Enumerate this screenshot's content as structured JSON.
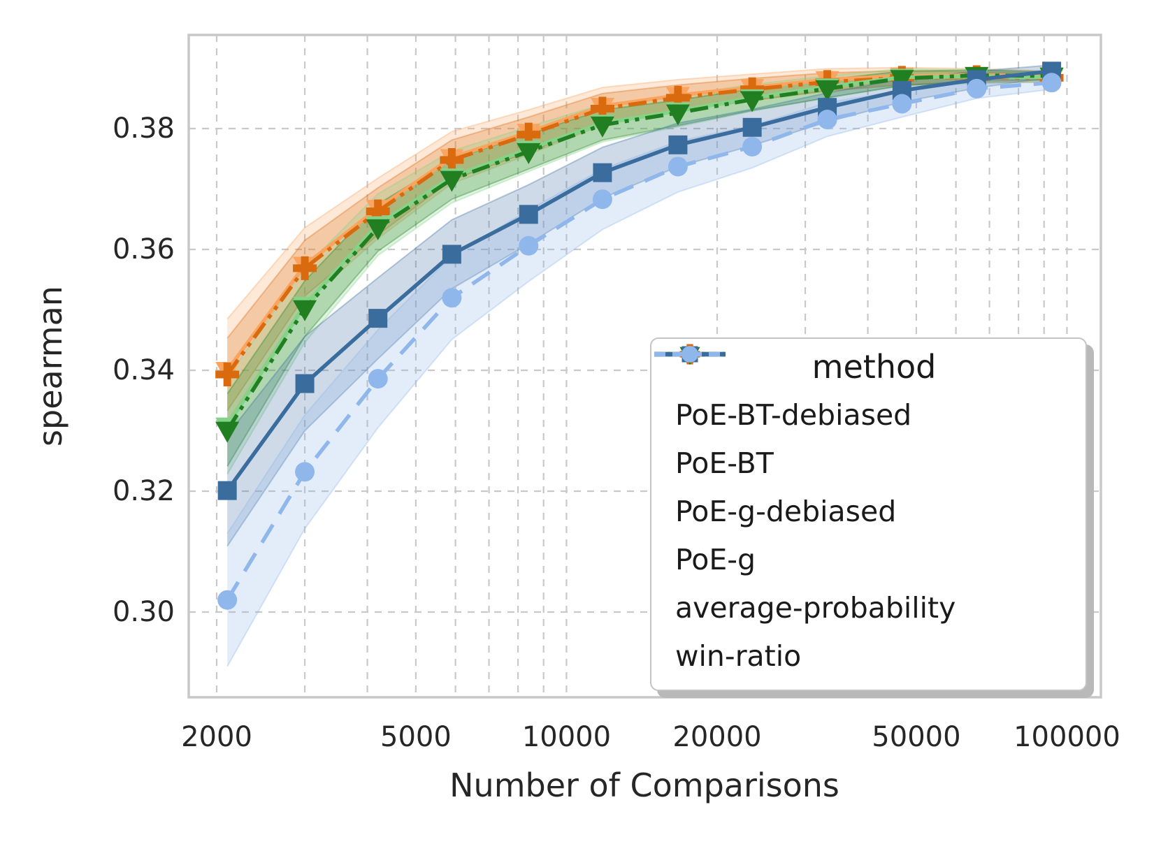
{
  "figure": {
    "background": "#ffffff",
    "text_color": "#262626",
    "grid_color": "#c9c9c9",
    "frame_color": "#c8c8c8",
    "legend_border_color": "#c4c4c4",
    "legend_shadow_color": "#b9b9b9"
  },
  "chart_data": {
    "type": "line",
    "title": "",
    "xlabel": "Number of Comparisons",
    "ylabel": "spearman",
    "x_scale": "log",
    "grid": true,
    "legend_title": "method",
    "legend_position": "lower right",
    "xlim": [
      1760,
      116000
    ],
    "ylim": [
      0.2859,
      0.3955
    ],
    "x_ticks": [
      {
        "value": 2000,
        "label": "2000"
      },
      {
        "value": 5000,
        "label": "5000"
      },
      {
        "value": 10000,
        "label": "10000"
      },
      {
        "value": 20000,
        "label": "20000"
      },
      {
        "value": 50000,
        "label": "50000"
      },
      {
        "value": 100000,
        "label": "100000"
      }
    ],
    "x_minor_gridlines": [
      3000,
      4000,
      6000,
      7000,
      8000,
      9000,
      30000,
      40000,
      60000,
      70000,
      80000,
      90000
    ],
    "y_ticks": [
      {
        "value": 0.38,
        "label": "0.38"
      },
      {
        "value": 0.36,
        "label": "0.36"
      },
      {
        "value": 0.34,
        "label": "0.34"
      },
      {
        "value": 0.32,
        "label": "0.32"
      },
      {
        "value": 0.3,
        "label": "0.30"
      }
    ],
    "x": [
      2100,
      3000,
      4200,
      5900,
      8400,
      11800,
      16700,
      23500,
      33200,
      46800,
      66000,
      93200
    ],
    "series": [
      {
        "name": "PoE-BT-debiased",
        "color": "#FAA45F",
        "line_style": "solid",
        "marker": "triangle-down",
        "values": [
          0.34,
          0.3574,
          0.3668,
          0.3752,
          0.3794,
          0.3837,
          0.3855,
          0.3868,
          0.3881,
          0.3887,
          0.3888,
          0.3887
        ],
        "band_halfwidth": [
          0.0085,
          0.0062,
          0.005,
          0.0043,
          0.0037,
          0.0031,
          0.0026,
          0.0022,
          0.0018,
          0.0014,
          0.0011,
          0.0008
        ]
      },
      {
        "name": "PoE-BT",
        "color": "#D96A0E",
        "line_style": "dashdotdot",
        "marker": "plus",
        "values": [
          0.3393,
          0.3569,
          0.3663,
          0.3748,
          0.379,
          0.3833,
          0.3851,
          0.3865,
          0.3877,
          0.3884,
          0.3885,
          0.3884
        ],
        "band_halfwidth": [
          0.006,
          0.0046,
          0.0039,
          0.0033,
          0.0029,
          0.0025,
          0.0021,
          0.0018,
          0.0015,
          0.0012,
          0.0009,
          0.0007
        ]
      },
      {
        "name": "PoE-g-debiased",
        "color": "#83D489",
        "line_style": "solid",
        "marker": "triangle-down",
        "values": [
          0.3308,
          0.3508,
          0.3641,
          0.372,
          0.3766,
          0.3809,
          0.3829,
          0.3851,
          0.3869,
          0.3885,
          0.3886,
          0.3885
        ],
        "band_halfwidth": [
          0.008,
          0.0062,
          0.0051,
          0.0043,
          0.0037,
          0.0031,
          0.0026,
          0.0022,
          0.0018,
          0.0014,
          0.0011,
          0.0008
        ]
      },
      {
        "name": "PoE-g",
        "color": "#217E21",
        "line_style": "dashdotdot",
        "marker": "triangle-down",
        "values": [
          0.3301,
          0.3502,
          0.3636,
          0.3716,
          0.3762,
          0.3806,
          0.3826,
          0.3848,
          0.3866,
          0.3883,
          0.3888,
          0.3887
        ],
        "band_halfwidth": [
          0.006,
          0.0046,
          0.0039,
          0.0033,
          0.0029,
          0.0025,
          0.0021,
          0.0018,
          0.0015,
          0.0012,
          0.0009,
          0.0007
        ]
      },
      {
        "name": "average-probability",
        "color": "#3A6D9E",
        "line_style": "solid",
        "marker": "square",
        "values": [
          0.3201,
          0.3378,
          0.3486,
          0.3592,
          0.3658,
          0.3727,
          0.3773,
          0.3802,
          0.3835,
          0.3863,
          0.3881,
          0.3895
        ],
        "band_halfwidth": [
          0.0092,
          0.0078,
          0.0067,
          0.0057,
          0.0049,
          0.0042,
          0.0036,
          0.003,
          0.0024,
          0.0019,
          0.0014,
          0.001
        ]
      },
      {
        "name": "win-ratio",
        "color": "#8FB7EB",
        "line_style": "dashed",
        "marker": "circle",
        "values": [
          0.302,
          0.3232,
          0.3386,
          0.352,
          0.3606,
          0.3683,
          0.3737,
          0.377,
          0.3815,
          0.3841,
          0.3866,
          0.3876
        ],
        "band_halfwidth": [
          0.011,
          0.0094,
          0.0081,
          0.0069,
          0.0059,
          0.005,
          0.0042,
          0.0035,
          0.0028,
          0.0022,
          0.0016,
          0.0011
        ]
      }
    ]
  }
}
